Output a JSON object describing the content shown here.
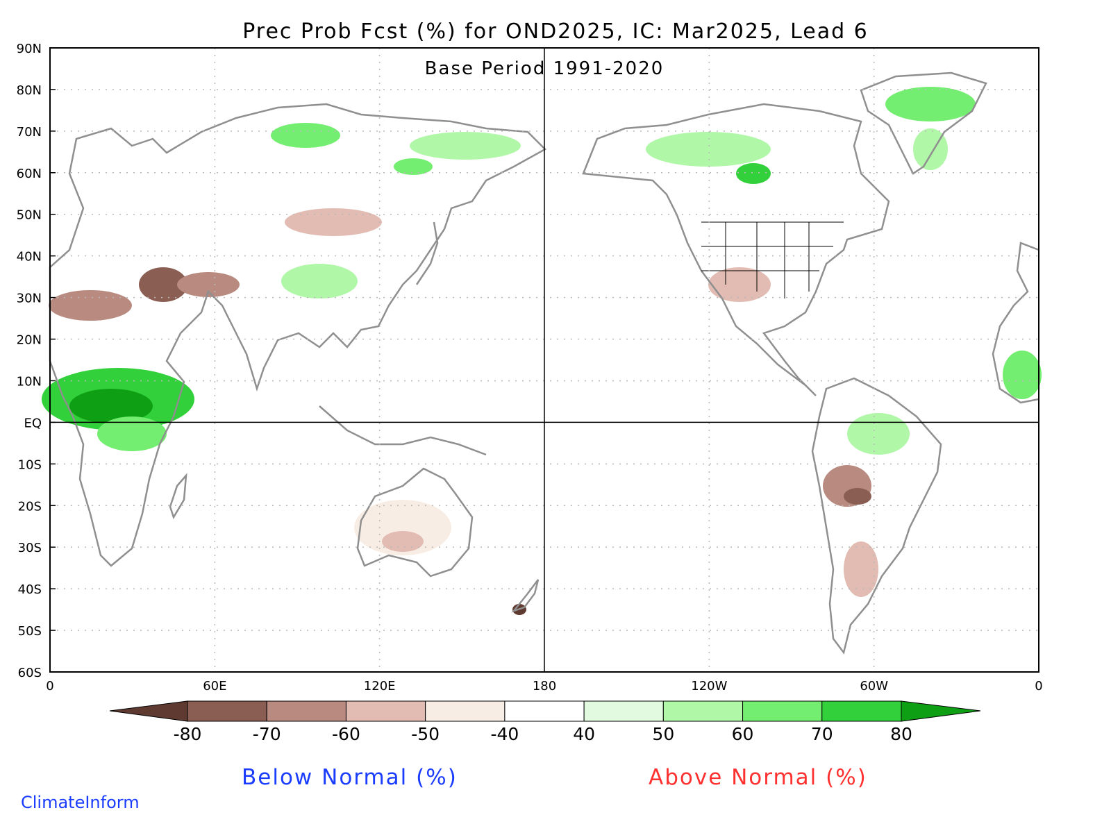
{
  "title": "Prec Prob Fcst (%) for OND2025, IC: Mar2025, Lead 6",
  "subtitle": "Base Period 1991-2020",
  "lat_labels": [
    "90N",
    "80N",
    "70N",
    "60N",
    "50N",
    "40N",
    "30N",
    "20N",
    "10N",
    "EQ",
    "10S",
    "20S",
    "30S",
    "40S",
    "50S",
    "60S"
  ],
  "lon_labels": [
    "0",
    "60E",
    "120E",
    "180",
    "120W",
    "60W",
    "0"
  ],
  "colorbar": {
    "ticks": [
      "-80",
      "-70",
      "-60",
      "-50",
      "-40",
      "40",
      "50",
      "60",
      "70",
      "80"
    ],
    "colors": [
      "#5e3a30",
      "#8b5e54",
      "#b88a80",
      "#e2bcb2",
      "#f8ede4",
      "#ffffff",
      "#e2fbe0",
      "#b0f7a8",
      "#74ee70",
      "#32d03a",
      "#0f9f14"
    ],
    "below_label": "Below Normal (%)",
    "above_label": "Above Normal (%)"
  },
  "credit": "ClimateInform",
  "colors": {
    "land_outline": "#8f8f8f",
    "grid": "#b8b8b8"
  }
}
